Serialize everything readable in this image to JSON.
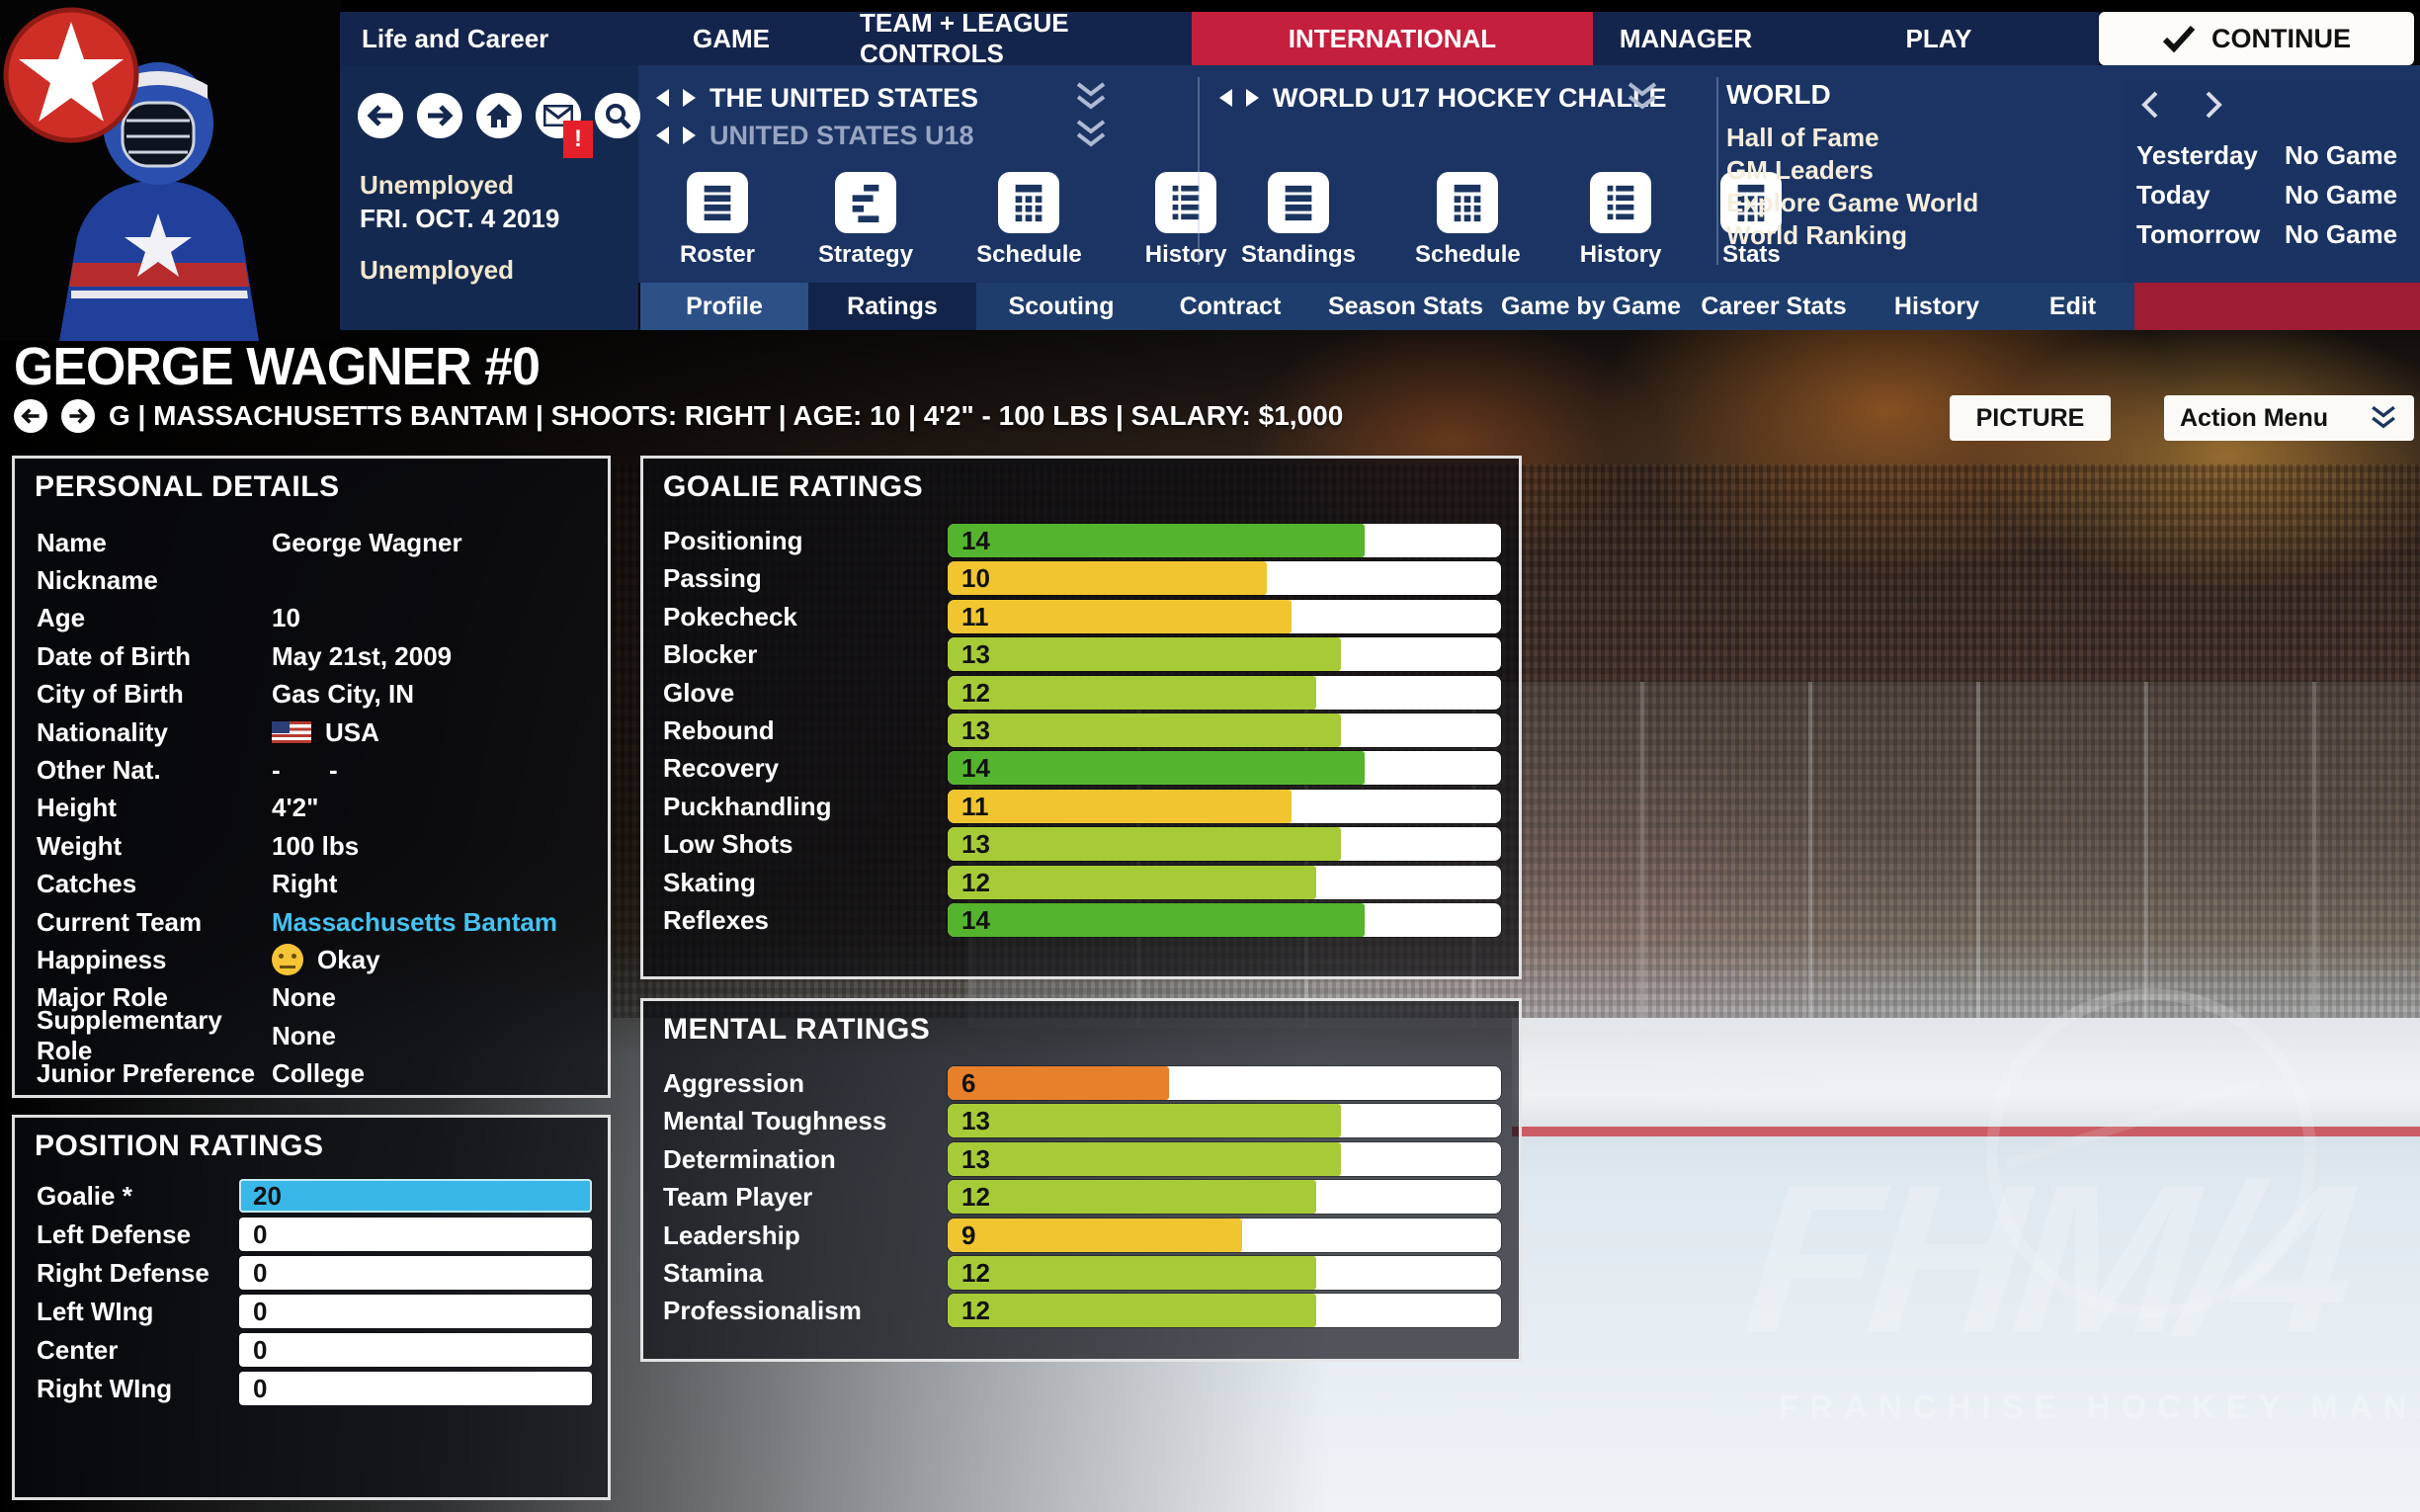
{
  "topnav": {
    "tabs": [
      {
        "label": "Life and Career",
        "active": false
      },
      {
        "label": "GAME",
        "active": false
      },
      {
        "label": "TEAM + LEAGUE CONTROLS",
        "active": false
      },
      {
        "label": "INTERNATIONAL",
        "active": true
      },
      {
        "label": "MANAGER",
        "active": false
      },
      {
        "label": "PLAY",
        "active": false
      }
    ],
    "continue_label": "CONTINUE"
  },
  "header": {
    "mail_badge": "!",
    "status_line1": "Unemployed",
    "date": "FRI. OCT. 4 2019",
    "status_line2": "Unemployed",
    "team_primary": "THE UNITED STATES",
    "team_secondary": "UNITED STATES U18",
    "team_menu": [
      {
        "label": "Roster",
        "icon": "roster-icon"
      },
      {
        "label": "Strategy",
        "icon": "strategy-icon"
      },
      {
        "label": "Schedule",
        "icon": "schedule-icon"
      },
      {
        "label": "History",
        "icon": "history-icon"
      }
    ],
    "league_name": "WORLD U17 HOCKEY CHALLE",
    "league_menu": [
      {
        "label": "Standings",
        "icon": "standings-icon"
      },
      {
        "label": "Schedule",
        "icon": "schedule-icon"
      },
      {
        "label": "History",
        "icon": "history-icon"
      },
      {
        "label": "Stats",
        "icon": "stats-icon"
      }
    ],
    "world_title": "WORLD",
    "world_links": [
      "Hall of Fame",
      "GM Leaders",
      "Explore Game World",
      "World Ranking"
    ],
    "games": [
      {
        "day": "Yesterday",
        "status": "No Game"
      },
      {
        "day": "Today",
        "status": "No Game"
      },
      {
        "day": "Tomorrow",
        "status": "No Game"
      }
    ]
  },
  "subnav": {
    "tabs": [
      {
        "label": "Profile",
        "state": "light"
      },
      {
        "label": "Ratings",
        "state": "active"
      },
      {
        "label": "Scouting",
        "state": "normal"
      },
      {
        "label": "Contract",
        "state": "normal"
      },
      {
        "label": "Season Stats",
        "state": "normal"
      },
      {
        "label": "Game by Game",
        "state": "normal"
      },
      {
        "label": "Career Stats",
        "state": "normal"
      },
      {
        "label": "History",
        "state": "normal"
      },
      {
        "label": "Edit",
        "state": "normal"
      }
    ]
  },
  "player": {
    "name": "GEORGE WAGNER #0",
    "info_line": "G | MASSACHUSETTS BANTAM | SHOOTS: RIGHT | AGE: 10 | 4'2\" - 100 LBS | SALARY: $1,000",
    "picture_label": "PICTURE",
    "action_menu_label": "Action Menu"
  },
  "personal_details": {
    "title": "PERSONAL DETAILS",
    "rows": [
      {
        "label": "Name",
        "value": "George Wagner",
        "type": "text"
      },
      {
        "label": "Nickname",
        "value": "",
        "type": "text"
      },
      {
        "label": "Age",
        "value": "10",
        "type": "text"
      },
      {
        "label": "Date of Birth",
        "value": "May 21st, 2009",
        "type": "text"
      },
      {
        "label": "City of Birth",
        "value": "Gas City, IN",
        "type": "text"
      },
      {
        "label": "Nationality",
        "value": "USA",
        "type": "flag"
      },
      {
        "label": "Other Nat.",
        "value": "-",
        "value2": "-",
        "type": "dashes"
      },
      {
        "label": "Height",
        "value": "4'2\"",
        "type": "text"
      },
      {
        "label": "Weight",
        "value": "100 lbs",
        "type": "text"
      },
      {
        "label": "Catches",
        "value": "Right",
        "type": "text"
      },
      {
        "label": "Current Team",
        "value": "Massachusetts Bantam",
        "type": "link"
      },
      {
        "label": "Happiness",
        "value": "Okay",
        "type": "emoji"
      },
      {
        "label": "Major Role",
        "value": "None",
        "type": "text"
      },
      {
        "label": "Supplementary Role",
        "value": "None",
        "type": "text"
      },
      {
        "label": "Junior Preference",
        "value": "College",
        "type": "text"
      }
    ]
  },
  "position_ratings": {
    "title": "POSITION RATINGS",
    "max": 20,
    "rows": [
      {
        "label": "Goalie *",
        "value": "20",
        "highlight": true
      },
      {
        "label": "Left Defense",
        "value": "0",
        "highlight": false
      },
      {
        "label": "Right Defense",
        "value": "0",
        "highlight": false
      },
      {
        "label": "Left WIng",
        "value": "0",
        "highlight": false
      },
      {
        "label": "Center",
        "value": "0",
        "highlight": false
      },
      {
        "label": "Right WIng",
        "value": "0",
        "highlight": false
      }
    ]
  },
  "goalie_ratings": {
    "title": "GOALIE RATINGS",
    "max": 20,
    "items": [
      {
        "label": "Positioning",
        "value": 14
      },
      {
        "label": "Passing",
        "value": 10
      },
      {
        "label": "Pokecheck",
        "value": 11
      },
      {
        "label": "Blocker",
        "value": 13
      },
      {
        "label": "Glove",
        "value": 12
      },
      {
        "label": "Rebound",
        "value": 13
      },
      {
        "label": "Recovery",
        "value": 14
      },
      {
        "label": "Puckhandling",
        "value": 11
      },
      {
        "label": "Low Shots",
        "value": 13
      },
      {
        "label": "Skating",
        "value": 12
      },
      {
        "label": "Reflexes",
        "value": 14
      }
    ]
  },
  "mental_ratings": {
    "title": "MENTAL RATINGS",
    "max": 20,
    "items": [
      {
        "label": "Aggression",
        "value": 6
      },
      {
        "label": "Mental Toughness",
        "value": 13
      },
      {
        "label": "Determination",
        "value": 13
      },
      {
        "label": "Team Player",
        "value": 12
      },
      {
        "label": "Leadership",
        "value": 9
      },
      {
        "label": "Stamina",
        "value": 12
      },
      {
        "label": "Professionalism",
        "value": 12
      }
    ]
  },
  "watermark": {
    "logo": "FHM/4",
    "subtitle": "FRANCHISE HOCKEY MANAGER"
  },
  "colors": {
    "green": "#55b42e",
    "yellow_green": "#a7cb37",
    "yellow": "#f1c52f",
    "orange": "#e8802b",
    "highlight_cyan": "#39b7e8",
    "link_cyan": "#45c2f1",
    "accent_red": "#c51f3e"
  }
}
